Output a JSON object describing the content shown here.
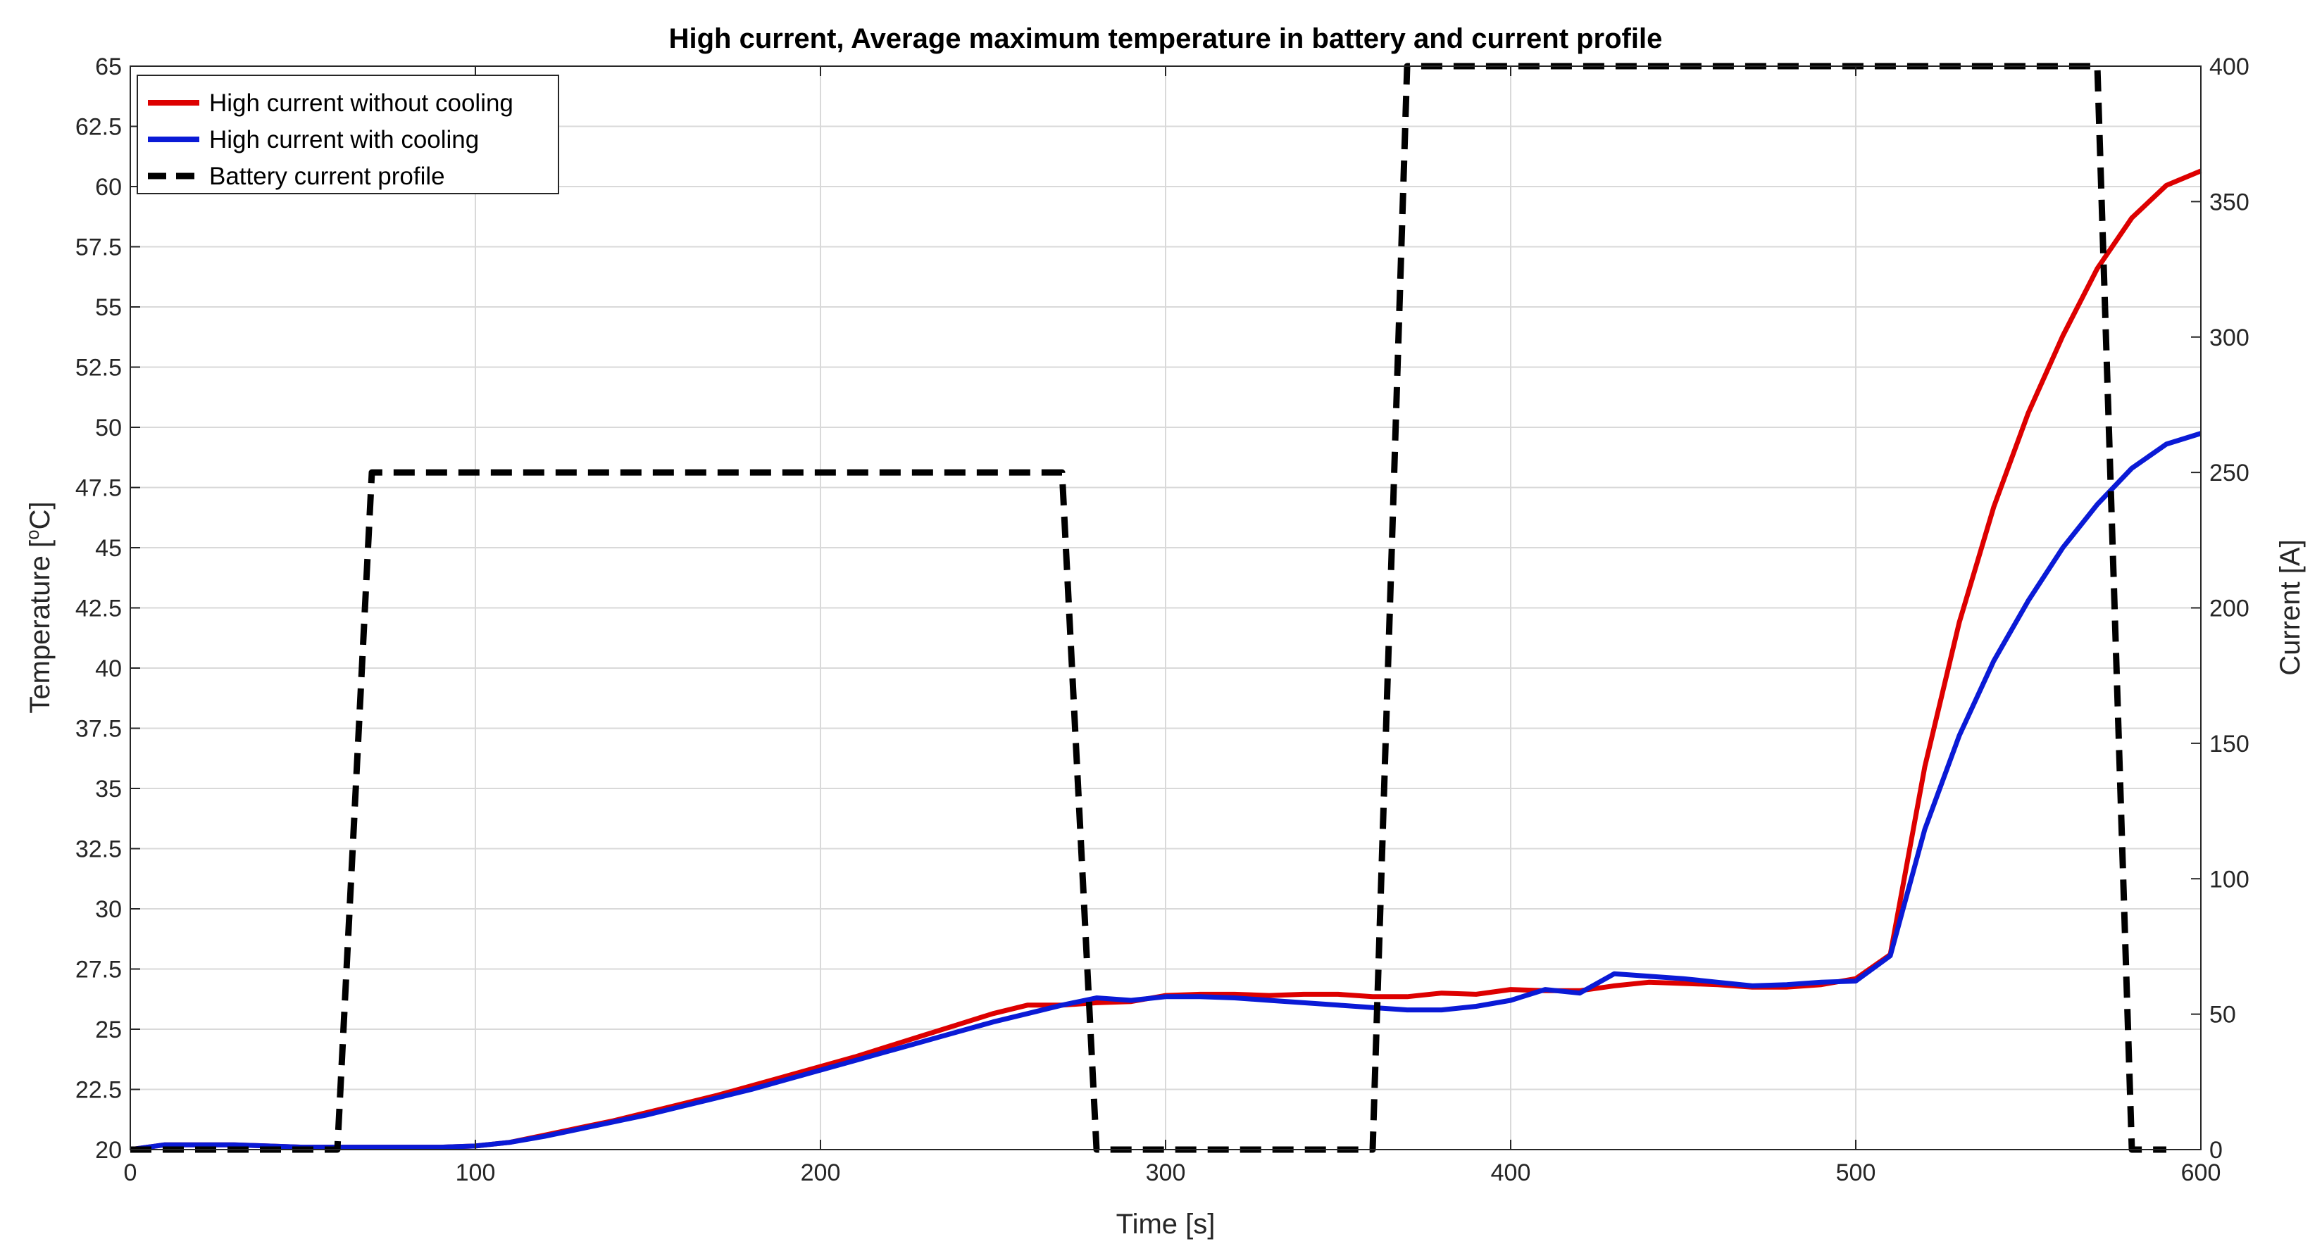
{
  "chart_data": {
    "type": "line",
    "title": "High current, Average maximum temperature in battery and current profile",
    "xlabel": "Time [s]",
    "ylabel_left": "Temperature [°C]",
    "ylabel_left_parts": {
      "pre": "Temperature [",
      "sup": "o",
      "post": "C]"
    },
    "ylabel_right": "Current [A]",
    "xlim": [
      0,
      600
    ],
    "ylim_left": [
      20,
      65
    ],
    "ylim_right": [
      0,
      400
    ],
    "grid": true,
    "legend_position": "top-left",
    "x_ticks": [
      "0",
      "100",
      "200",
      "300",
      "400",
      "500",
      "600"
    ],
    "x_tick_values": [
      0,
      100,
      200,
      300,
      400,
      500,
      600
    ],
    "y_left_ticks": [
      "20",
      "22.5",
      "25",
      "27.5",
      "30",
      "32.5",
      "35",
      "37.5",
      "40",
      "42.5",
      "45",
      "47.5",
      "50",
      "52.5",
      "55",
      "57.5",
      "60",
      "62.5",
      "65"
    ],
    "y_left_tick_values": [
      20,
      22.5,
      25,
      27.5,
      30,
      32.5,
      35,
      37.5,
      40,
      42.5,
      45,
      47.5,
      50,
      52.5,
      55,
      57.5,
      60,
      62.5,
      65
    ],
    "y_right_ticks": [
      "0",
      "50",
      "100",
      "150",
      "200",
      "250",
      "300",
      "350",
      "400"
    ],
    "y_right_tick_values": [
      0,
      50,
      100,
      150,
      200,
      250,
      300,
      350,
      400
    ],
    "series": [
      {
        "name": "High current without cooling",
        "axis": "left",
        "color": "#dd0000",
        "style": "solid",
        "x": [
          0,
          10,
          20,
          30,
          40,
          50,
          60,
          70,
          80,
          90,
          100,
          110,
          120,
          130,
          140,
          150,
          160,
          170,
          180,
          190,
          200,
          210,
          220,
          230,
          240,
          250,
          260,
          270,
          280,
          290,
          300,
          310,
          320,
          330,
          340,
          350,
          360,
          370,
          380,
          390,
          400,
          410,
          420,
          430,
          440,
          450,
          460,
          470,
          480,
          490,
          500,
          510,
          520,
          530,
          540,
          550,
          560,
          570,
          580,
          590,
          600
        ],
        "y": [
          20.0,
          20.2,
          20.2,
          20.2,
          20.15,
          20.1,
          20.1,
          20.1,
          20.1,
          20.1,
          20.15,
          20.3,
          20.6,
          20.9,
          21.2,
          21.55,
          21.9,
          22.25,
          22.65,
          23.05,
          23.45,
          23.85,
          24.3,
          24.75,
          25.2,
          25.65,
          26.0,
          26.0,
          26.1,
          26.15,
          26.4,
          26.45,
          26.45,
          26.4,
          26.45,
          26.45,
          26.35,
          26.35,
          26.5,
          26.45,
          26.65,
          26.6,
          26.6,
          26.8,
          26.95,
          26.9,
          26.85,
          26.75,
          26.75,
          26.85,
          27.1,
          28.1,
          35.9,
          41.9,
          46.7,
          50.6,
          53.8,
          56.6,
          58.7,
          60.05,
          60.65
        ]
      },
      {
        "name": "High current with cooling",
        "axis": "left",
        "color": "#0a1ad6",
        "style": "solid",
        "x": [
          0,
          10,
          20,
          30,
          40,
          50,
          60,
          70,
          80,
          90,
          100,
          110,
          120,
          130,
          140,
          150,
          160,
          170,
          180,
          190,
          200,
          210,
          220,
          230,
          240,
          250,
          260,
          270,
          280,
          290,
          300,
          310,
          320,
          330,
          340,
          350,
          360,
          370,
          380,
          390,
          400,
          410,
          420,
          430,
          440,
          450,
          460,
          470,
          480,
          490,
          500,
          510,
          520,
          530,
          540,
          550,
          560,
          570,
          580,
          590,
          600
        ],
        "y": [
          20.0,
          20.2,
          20.2,
          20.2,
          20.15,
          20.1,
          20.1,
          20.1,
          20.1,
          20.1,
          20.15,
          20.3,
          20.55,
          20.85,
          21.15,
          21.45,
          21.8,
          22.15,
          22.5,
          22.9,
          23.3,
          23.7,
          24.1,
          24.5,
          24.9,
          25.3,
          25.65,
          26.0,
          26.3,
          26.2,
          26.35,
          26.35,
          26.3,
          26.2,
          26.1,
          26.0,
          25.9,
          25.8,
          25.8,
          25.95,
          26.2,
          26.65,
          26.5,
          27.3,
          27.2,
          27.1,
          26.95,
          26.8,
          26.85,
          26.95,
          27.0,
          28.05,
          33.3,
          37.2,
          40.3,
          42.8,
          45.0,
          46.8,
          48.3,
          49.3,
          49.75
        ]
      },
      {
        "name": "Battery current profile",
        "axis": "right",
        "color": "#000000",
        "style": "dashed",
        "x": [
          0,
          60,
          70,
          270,
          280,
          360,
          370,
          570,
          580,
          590
        ],
        "y": [
          0,
          0,
          250,
          250,
          0,
          0,
          400,
          400,
          0,
          0
        ]
      }
    ]
  }
}
